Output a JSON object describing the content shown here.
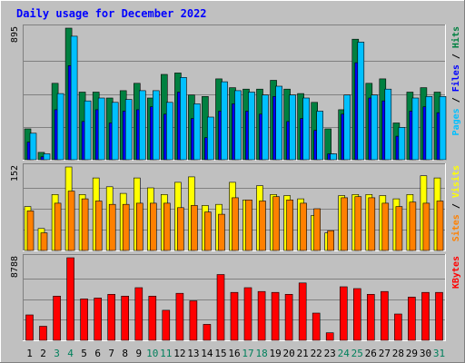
{
  "chart_data": {
    "type": "bar",
    "title": "Daily usage for December 2022",
    "categories": [
      "1",
      "2",
      "3",
      "4",
      "5",
      "6",
      "7",
      "8",
      "9",
      "10",
      "11",
      "12",
      "13",
      "14",
      "15",
      "16",
      "17",
      "18",
      "19",
      "20",
      "21",
      "22",
      "23",
      "24",
      "25",
      "26",
      "27",
      "28",
      "29",
      "30",
      "31"
    ],
    "weekend_days": [
      "3",
      "4",
      "10",
      "11",
      "17",
      "18",
      "24",
      "25",
      "31"
    ],
    "panels": [
      {
        "id": "hits",
        "max_label": "895",
        "ymax": 895,
        "legend": [
          {
            "label": "Pages",
            "color": "#00c0ff"
          },
          {
            "label": "Files",
            "color": "#0000ff"
          },
          {
            "label": "Hits",
            "color": "#008040"
          }
        ],
        "series": [
          {
            "name": "Hits",
            "color": "#008040",
            "values": [
              210,
              50,
              520,
              895,
              460,
              460,
              420,
              470,
              520,
              420,
              580,
              590,
              440,
              430,
              550,
              490,
              480,
              480,
              540,
              480,
              450,
              390,
              210,
              340,
              820,
              520,
              550,
              250,
              460,
              490,
              460
            ]
          },
          {
            "name": "Files",
            "color": "#0000ff",
            "values": [
              120,
              20,
              340,
              640,
              260,
              340,
              250,
              330,
              340,
              360,
              310,
              460,
              280,
              150,
              330,
              380,
              330,
              310,
              430,
              260,
              280,
              200,
              40,
              310,
              660,
              420,
              400,
              160,
              330,
              360,
              320
            ]
          },
          {
            "name": "Pages",
            "color": "#00c0ff",
            "values": [
              180,
              40,
              450,
              840,
              400,
              420,
              390,
              410,
              470,
              470,
              390,
              560,
              380,
              290,
              530,
              470,
              460,
              440,
              500,
              440,
              420,
              330,
              40,
              440,
              800,
              440,
              480,
              220,
              420,
              430,
              430
            ]
          }
        ]
      },
      {
        "id": "visits",
        "max_label": "152",
        "ymax": 152,
        "legend": [
          {
            "label": "Sites",
            "color": "#ff8000"
          },
          {
            "label": "Visits",
            "color": "#ffff00"
          }
        ],
        "series": [
          {
            "name": "Visits",
            "color": "#ffff00",
            "values": [
              80,
              40,
              102,
              152,
              102,
              132,
              116,
              104,
              132,
              114,
              102,
              124,
              134,
              82,
              84,
              124,
              92,
              118,
              102,
              100,
              94,
              64,
              32,
              100,
              102,
              102,
              100,
              94,
              102,
              136,
              132
            ]
          },
          {
            "name": "Sites",
            "color": "#ff8000",
            "values": [
              72,
              32,
              86,
              108,
              94,
              90,
              84,
              84,
              86,
              86,
              86,
              78,
              82,
              70,
              66,
              96,
              92,
              90,
              98,
              92,
              86,
              76,
              36,
              96,
              98,
              96,
              86,
              80,
              88,
              86,
              90
            ]
          }
        ]
      },
      {
        "id": "kbytes",
        "max_label": "8788",
        "ymax": 8788,
        "legend": [
          {
            "label": "KBytes",
            "color": "#ff0000"
          }
        ],
        "series": [
          {
            "name": "KBytes",
            "color": "#ff0000",
            "values": [
              2700,
              1500,
              4700,
              8788,
              4400,
              4500,
              4900,
              4700,
              5600,
              4700,
              3200,
              5000,
              4200,
              1700,
              7000,
              5100,
              5600,
              5200,
              5100,
              4900,
              6100,
              2900,
              800,
              5700,
              5500,
              4900,
              5200,
              2800,
              4600,
              5100,
              5100
            ]
          }
        ]
      }
    ]
  }
}
